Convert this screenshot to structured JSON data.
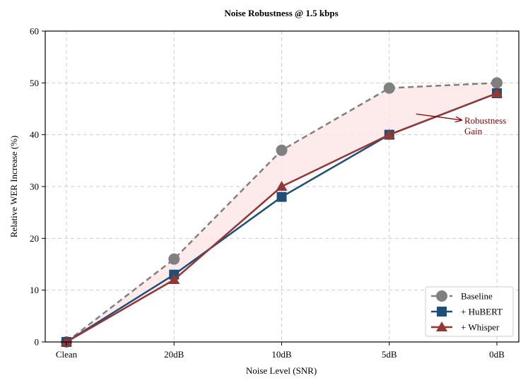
{
  "chart_data": {
    "type": "line",
    "title": "Noise Robustness @ 1.5 kbps",
    "xlabel": "Noise Level (SNR)",
    "ylabel": "Relative WER Increase (%)",
    "categories": [
      "Clean",
      "20dB",
      "10dB",
      "5dB",
      "0dB"
    ],
    "ylim": [
      0,
      60
    ],
    "yticks": [
      0,
      10,
      20,
      30,
      40,
      50,
      60
    ],
    "grid": true,
    "legend_position": "bottom-right",
    "series": [
      {
        "name": "Baseline",
        "values": [
          0,
          16,
          37,
          49,
          50
        ],
        "color": "#808080",
        "line_style": "dashed",
        "marker": "circle"
      },
      {
        "name": "+ HuBERT",
        "values": [
          0,
          13,
          28,
          40,
          48
        ],
        "color": "#1f4e79",
        "line_style": "solid",
        "marker": "square"
      },
      {
        "name": "+ Whisper",
        "values": [
          0,
          12,
          30,
          40,
          48
        ],
        "color": "#943634",
        "line_style": "solid",
        "marker": "triangle"
      }
    ],
    "shaded_region": {
      "between": [
        "Baseline",
        "+ Whisper"
      ],
      "color": "#fde8e8"
    },
    "annotation": {
      "lines": [
        "Robustness",
        "Gain"
      ],
      "color": "#8b0000",
      "arrow_target": {
        "x": "5dB",
        "y": 44
      }
    }
  }
}
